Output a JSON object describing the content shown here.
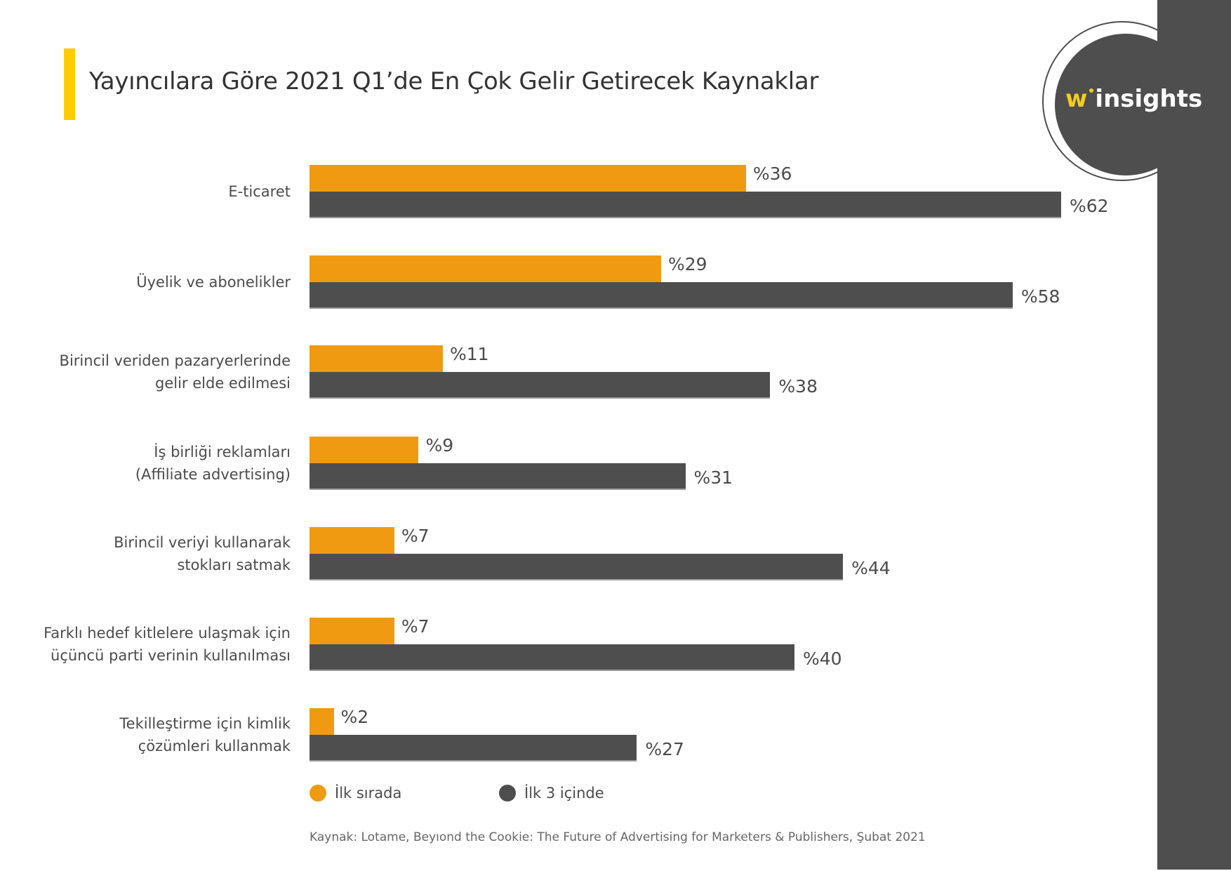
{
  "header": {
    "title": "Yayıncılara Göre 2021 Q1’de En Çok Gelir Getirecek Kaynaklar"
  },
  "logo": {
    "w": "w",
    "text": "insights",
    "icon": "winsights-logo"
  },
  "colors": {
    "first": "#F09A12",
    "top3": "#4e4e4e",
    "accent": "#FFCC00"
  },
  "chart_data": {
    "type": "bar",
    "orientation": "horizontal",
    "title": "Yayıncılara Göre 2021 Q1’de En Çok Gelir Getirecek Kaynaklar",
    "xlabel": "",
    "ylabel": "",
    "grid": false,
    "xlim": [
      0,
      62
    ],
    "value_prefix": "%",
    "legend_position": "bottom-left",
    "categories": [
      [
        "E-ticaret"
      ],
      [
        "Üyelik ve abonelikler"
      ],
      [
        "Birincil veriden pazaryerlerinde",
        "gelir elde edilmesi"
      ],
      [
        "İş birliği reklamları",
        "(Affiliate advertising)"
      ],
      [
        "Birincil veriyi kullanarak",
        "stokları satmak"
      ],
      [
        "Farklı hedef kitlelere ulaşmak için",
        "üçüncü parti verinin kullanılması"
      ],
      [
        "Tekilleştirme için kimlik",
        "çözümleri kullanmak"
      ]
    ],
    "series": [
      {
        "name": "İlk sırada",
        "color": "#F09A12",
        "values": [
          36,
          29,
          11,
          9,
          7,
          7,
          2
        ],
        "labels": [
          "%36",
          "%29",
          "%11",
          "%9",
          "%7",
          "%7",
          "%2"
        ]
      },
      {
        "name": "İlk 3 içinde",
        "color": "#4e4e4e",
        "values": [
          62,
          58,
          38,
          31,
          44,
          40,
          27
        ],
        "labels": [
          "%62",
          "%58",
          "%38",
          "%31",
          "%44",
          "%40",
          "%27"
        ]
      }
    ]
  },
  "legend": {
    "items": [
      {
        "label": "İlk sırada",
        "color": "#F09A12"
      },
      {
        "label": "İlk 3 içinde",
        "color": "#4e4e4e"
      }
    ]
  },
  "footer": {
    "source": "Kaynak: Lotame, Beyıond the Cookie: The Future of Advertising for Marketers & Publishers, Şubat 2021"
  }
}
